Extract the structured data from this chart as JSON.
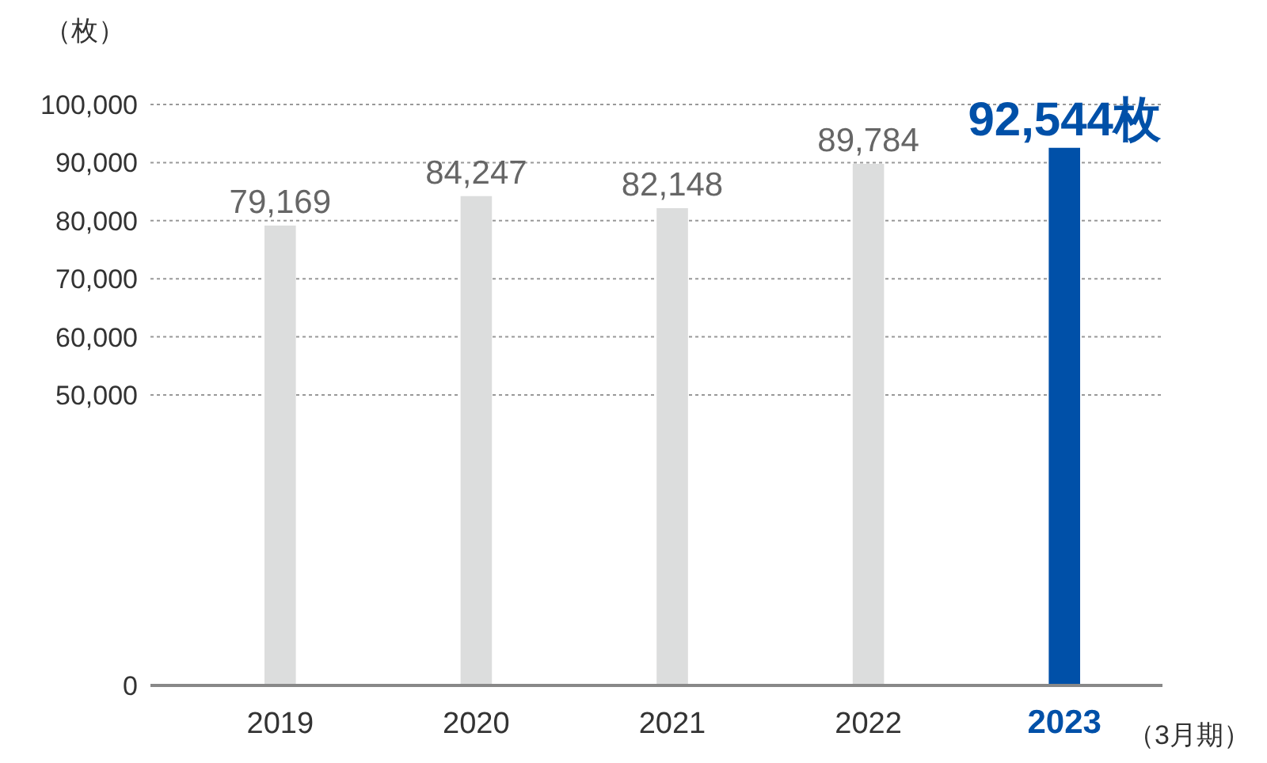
{
  "chart_data": {
    "type": "bar",
    "ylabel": "（枚）",
    "xlabel": "（3月期）",
    "categories": [
      "2019",
      "2020",
      "2021",
      "2022",
      "2023"
    ],
    "values": [
      79169,
      84247,
      82148,
      89784,
      92544
    ],
    "colors": [
      "#dcdddd",
      "#dcdddd",
      "#dcdddd",
      "#dcdddd",
      "#0050a8"
    ],
    "value_labels": [
      "79,169",
      "84,247",
      "82,148",
      "89,784",
      "92,544枚"
    ],
    "ylim": [
      0,
      100000
    ],
    "yticks": [
      {
        "value": 0,
        "label": "0"
      },
      {
        "value": 50000,
        "label": "50,000"
      },
      {
        "value": 60000,
        "label": "60,000"
      },
      {
        "value": 70000,
        "label": "70,000"
      },
      {
        "value": 80000,
        "label": "80,000"
      },
      {
        "value": 90000,
        "label": "90,000"
      },
      {
        "value": 100000,
        "label": "100,000"
      }
    ],
    "grid": "y",
    "legend": false
  }
}
